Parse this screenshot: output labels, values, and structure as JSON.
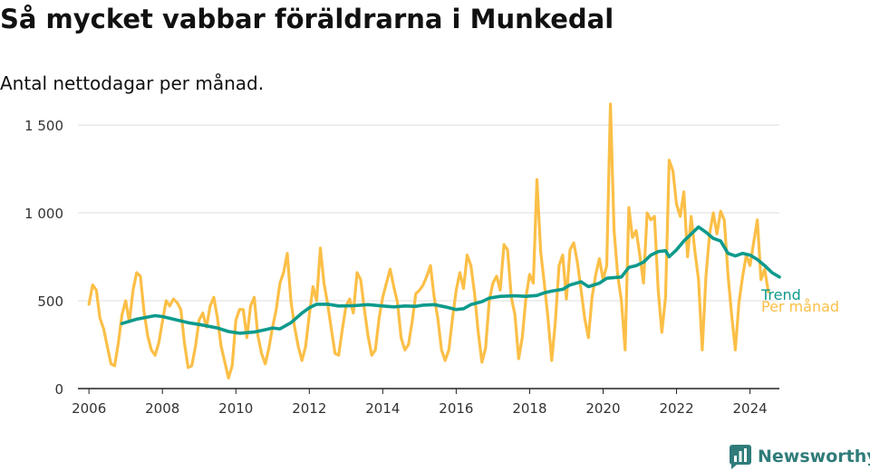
{
  "title": "Så mycket vabbar föräldrarna i Munkedal",
  "subtitle": "Antal nettodagar per månad.",
  "brand": {
    "name": "Newsworthy",
    "icon": "bar-chart-logo-icon"
  },
  "colors": {
    "monthly": "#fbbf47",
    "trend": "#0e9a8c",
    "grid": "#dcdcdc",
    "axis": "#222222",
    "brand": "#2f7c7a"
  },
  "chart_data": {
    "type": "line",
    "xlim": [
      2005.7,
      2024.8
    ],
    "ylim": [
      0,
      1650
    ],
    "x_ticks": [
      2006,
      2008,
      2010,
      2012,
      2014,
      2016,
      2018,
      2020,
      2022,
      2024
    ],
    "y_ticks": [
      0,
      500,
      1000,
      1500
    ],
    "y_tick_labels": [
      "0",
      "500",
      "1 000",
      "1 500"
    ],
    "grid": true,
    "series": [
      {
        "name": "Trend",
        "points": [
          [
            2006.9,
            370
          ],
          [
            2007.3,
            395
          ],
          [
            2007.8,
            415
          ],
          [
            2008.0,
            410
          ],
          [
            2008.3,
            395
          ],
          [
            2008.7,
            375
          ],
          [
            2009.0,
            365
          ],
          [
            2009.5,
            345
          ],
          [
            2009.8,
            325
          ],
          [
            2010.1,
            315
          ],
          [
            2010.5,
            322
          ],
          [
            2010.8,
            335
          ],
          [
            2011.0,
            345
          ],
          [
            2011.2,
            340
          ],
          [
            2011.5,
            375
          ],
          [
            2011.8,
            430
          ],
          [
            2012.0,
            460
          ],
          [
            2012.2,
            480
          ],
          [
            2012.5,
            480
          ],
          [
            2012.8,
            470
          ],
          [
            2013.2,
            472
          ],
          [
            2013.6,
            478
          ],
          [
            2014.0,
            470
          ],
          [
            2014.3,
            465
          ],
          [
            2014.6,
            470
          ],
          [
            2014.9,
            468
          ],
          [
            2015.1,
            475
          ],
          [
            2015.4,
            478
          ],
          [
            2015.7,
            465
          ],
          [
            2016.0,
            450
          ],
          [
            2016.2,
            455
          ],
          [
            2016.4,
            478
          ],
          [
            2016.7,
            495
          ],
          [
            2016.9,
            515
          ],
          [
            2017.2,
            525
          ],
          [
            2017.6,
            528
          ],
          [
            2017.9,
            525
          ],
          [
            2018.2,
            530
          ],
          [
            2018.4,
            545
          ],
          [
            2018.6,
            555
          ],
          [
            2018.9,
            565
          ],
          [
            2019.1,
            590
          ],
          [
            2019.4,
            608
          ],
          [
            2019.6,
            580
          ],
          [
            2019.9,
            600
          ],
          [
            2020.1,
            628
          ],
          [
            2020.5,
            635
          ],
          [
            2020.7,
            690
          ],
          [
            2020.9,
            700
          ],
          [
            2021.1,
            720
          ],
          [
            2021.3,
            760
          ],
          [
            2021.5,
            780
          ],
          [
            2021.7,
            785
          ],
          [
            2021.8,
            750
          ],
          [
            2022.0,
            790
          ],
          [
            2022.2,
            840
          ],
          [
            2022.4,
            880
          ],
          [
            2022.6,
            920
          ],
          [
            2022.8,
            890
          ],
          [
            2023.0,
            855
          ],
          [
            2023.2,
            840
          ],
          [
            2023.4,
            770
          ],
          [
            2023.6,
            755
          ],
          [
            2023.8,
            770
          ],
          [
            2024.0,
            760
          ],
          [
            2024.2,
            735
          ],
          [
            2024.4,
            700
          ],
          [
            2024.6,
            660
          ],
          [
            2024.8,
            635
          ]
        ]
      },
      {
        "name": "Per månad",
        "points": [
          [
            2006.0,
            480
          ],
          [
            2006.1,
            590
          ],
          [
            2006.2,
            560
          ],
          [
            2006.3,
            400
          ],
          [
            2006.4,
            340
          ],
          [
            2006.5,
            240
          ],
          [
            2006.6,
            140
          ],
          [
            2006.7,
            130
          ],
          [
            2006.8,
            260
          ],
          [
            2006.9,
            420
          ],
          [
            2007.0,
            500
          ],
          [
            2007.1,
            380
          ],
          [
            2007.2,
            560
          ],
          [
            2007.3,
            660
          ],
          [
            2007.4,
            640
          ],
          [
            2007.5,
            440
          ],
          [
            2007.6,
            300
          ],
          [
            2007.7,
            220
          ],
          [
            2007.8,
            190
          ],
          [
            2007.9,
            260
          ],
          [
            2008.0,
            380
          ],
          [
            2008.1,
            500
          ],
          [
            2008.2,
            470
          ],
          [
            2008.3,
            510
          ],
          [
            2008.4,
            490
          ],
          [
            2008.5,
            450
          ],
          [
            2008.6,
            260
          ],
          [
            2008.7,
            120
          ],
          [
            2008.8,
            130
          ],
          [
            2008.9,
            240
          ],
          [
            2009.0,
            390
          ],
          [
            2009.1,
            430
          ],
          [
            2009.2,
            350
          ],
          [
            2009.3,
            470
          ],
          [
            2009.4,
            520
          ],
          [
            2009.5,
            400
          ],
          [
            2009.6,
            240
          ],
          [
            2009.7,
            150
          ],
          [
            2009.8,
            60
          ],
          [
            2009.9,
            130
          ],
          [
            2010.0,
            390
          ],
          [
            2010.1,
            450
          ],
          [
            2010.2,
            450
          ],
          [
            2010.3,
            290
          ],
          [
            2010.4,
            470
          ],
          [
            2010.5,
            520
          ],
          [
            2010.6,
            300
          ],
          [
            2010.7,
            200
          ],
          [
            2010.8,
            140
          ],
          [
            2010.9,
            230
          ],
          [
            2011.0,
            350
          ],
          [
            2011.1,
            450
          ],
          [
            2011.2,
            600
          ],
          [
            2011.3,
            660
          ],
          [
            2011.4,
            770
          ],
          [
            2011.5,
            500
          ],
          [
            2011.6,
            350
          ],
          [
            2011.7,
            240
          ],
          [
            2011.8,
            160
          ],
          [
            2011.9,
            240
          ],
          [
            2012.0,
            420
          ],
          [
            2012.1,
            580
          ],
          [
            2012.2,
            500
          ],
          [
            2012.3,
            800
          ],
          [
            2012.4,
            600
          ],
          [
            2012.5,
            480
          ],
          [
            2012.6,
            340
          ],
          [
            2012.7,
            200
          ],
          [
            2012.8,
            190
          ],
          [
            2012.9,
            340
          ],
          [
            2013.0,
            470
          ],
          [
            2013.1,
            510
          ],
          [
            2013.2,
            430
          ],
          [
            2013.3,
            660
          ],
          [
            2013.4,
            620
          ],
          [
            2013.5,
            450
          ],
          [
            2013.6,
            300
          ],
          [
            2013.7,
            190
          ],
          [
            2013.8,
            220
          ],
          [
            2013.9,
            400
          ],
          [
            2014.0,
            520
          ],
          [
            2014.1,
            600
          ],
          [
            2014.2,
            680
          ],
          [
            2014.3,
            580
          ],
          [
            2014.4,
            490
          ],
          [
            2014.5,
            290
          ],
          [
            2014.6,
            220
          ],
          [
            2014.7,
            250
          ],
          [
            2014.8,
            380
          ],
          [
            2014.9,
            540
          ],
          [
            2015.0,
            560
          ],
          [
            2015.1,
            590
          ],
          [
            2015.2,
            640
          ],
          [
            2015.3,
            700
          ],
          [
            2015.4,
            520
          ],
          [
            2015.5,
            400
          ],
          [
            2015.6,
            220
          ],
          [
            2015.7,
            160
          ],
          [
            2015.8,
            220
          ],
          [
            2015.9,
            400
          ],
          [
            2016.0,
            560
          ],
          [
            2016.1,
            660
          ],
          [
            2016.2,
            570
          ],
          [
            2016.3,
            760
          ],
          [
            2016.4,
            700
          ],
          [
            2016.5,
            540
          ],
          [
            2016.6,
            320
          ],
          [
            2016.7,
            150
          ],
          [
            2016.8,
            230
          ],
          [
            2016.9,
            500
          ],
          [
            2017.0,
            600
          ],
          [
            2017.1,
            640
          ],
          [
            2017.2,
            560
          ],
          [
            2017.3,
            820
          ],
          [
            2017.4,
            790
          ],
          [
            2017.5,
            520
          ],
          [
            2017.6,
            420
          ],
          [
            2017.7,
            170
          ],
          [
            2017.8,
            290
          ],
          [
            2017.9,
            520
          ],
          [
            2018.0,
            650
          ],
          [
            2018.1,
            600
          ],
          [
            2018.2,
            1190
          ],
          [
            2018.3,
            780
          ],
          [
            2018.4,
            600
          ],
          [
            2018.5,
            400
          ],
          [
            2018.6,
            160
          ],
          [
            2018.7,
            380
          ],
          [
            2018.8,
            700
          ],
          [
            2018.9,
            760
          ],
          [
            2019.0,
            510
          ],
          [
            2019.1,
            790
          ],
          [
            2019.2,
            830
          ],
          [
            2019.3,
            720
          ],
          [
            2019.4,
            560
          ],
          [
            2019.5,
            400
          ],
          [
            2019.6,
            290
          ],
          [
            2019.7,
            520
          ],
          [
            2019.8,
            650
          ],
          [
            2019.9,
            740
          ],
          [
            2020.0,
            620
          ],
          [
            2020.1,
            700
          ],
          [
            2020.2,
            1620
          ],
          [
            2020.3,
            900
          ],
          [
            2020.4,
            640
          ],
          [
            2020.5,
            500
          ],
          [
            2020.6,
            220
          ],
          [
            2020.7,
            1030
          ],
          [
            2020.8,
            860
          ],
          [
            2020.9,
            900
          ],
          [
            2021.0,
            760
          ],
          [
            2021.1,
            600
          ],
          [
            2021.2,
            1000
          ],
          [
            2021.3,
            960
          ],
          [
            2021.4,
            980
          ],
          [
            2021.5,
            560
          ],
          [
            2021.6,
            320
          ],
          [
            2021.7,
            520
          ],
          [
            2021.8,
            1300
          ],
          [
            2021.9,
            1240
          ],
          [
            2022.0,
            1050
          ],
          [
            2022.1,
            980
          ],
          [
            2022.2,
            1120
          ],
          [
            2022.3,
            750
          ],
          [
            2022.4,
            980
          ],
          [
            2022.5,
            780
          ],
          [
            2022.6,
            620
          ],
          [
            2022.7,
            220
          ],
          [
            2022.8,
            640
          ],
          [
            2022.9,
            880
          ],
          [
            2023.0,
            1000
          ],
          [
            2023.1,
            880
          ],
          [
            2023.2,
            1010
          ],
          [
            2023.3,
            960
          ],
          [
            2023.4,
            650
          ],
          [
            2023.5,
            420
          ],
          [
            2023.6,
            220
          ],
          [
            2023.7,
            490
          ],
          [
            2023.8,
            640
          ],
          [
            2023.9,
            760
          ],
          [
            2024.0,
            700
          ],
          [
            2024.1,
            830
          ],
          [
            2024.2,
            960
          ],
          [
            2024.3,
            620
          ],
          [
            2024.4,
            680
          ],
          [
            2024.5,
            550
          ]
        ]
      }
    ]
  }
}
